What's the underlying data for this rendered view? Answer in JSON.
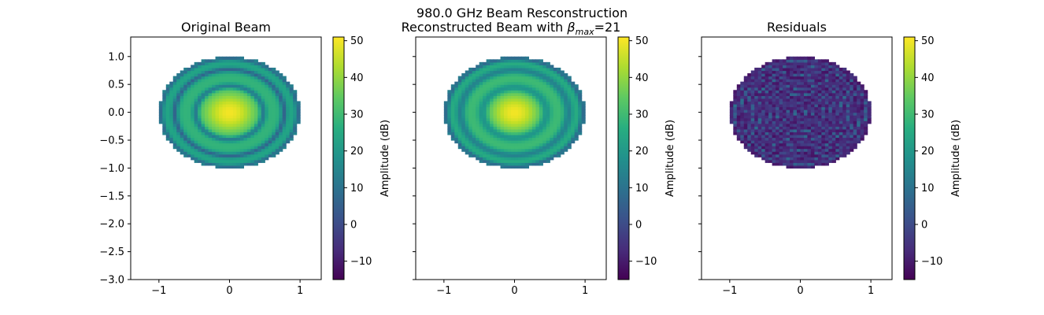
{
  "chart_data": {
    "type": "heatmap",
    "suptitle": "980.0 GHz Beam Resconstruction",
    "shared": {
      "xlim": [
        -1.4,
        1.3
      ],
      "ylim": [
        -3.0,
        1.35
      ],
      "xticks": [
        -1,
        0,
        1
      ],
      "xtick_labels": [
        "−1",
        "0",
        "1"
      ],
      "yticks": [
        1.0,
        0.5,
        0.0,
        -0.5,
        -1.0,
        -1.5,
        -2.0,
        -2.5,
        -3.0
      ],
      "ytick_labels": [
        "1.0",
        "0.5",
        "0.0",
        "−0.5",
        "−1.0",
        "−1.5",
        "−2.0",
        "−2.5",
        "−3.0"
      ],
      "colormap": "viridis",
      "beam_center": [
        0.0,
        0.0
      ],
      "beam_radius": 1.0,
      "grid": false
    },
    "panels": [
      {
        "id": "original",
        "title": "Original Beam",
        "title_prefix": "",
        "title_symbol": "",
        "title_subscript": "",
        "title_suffix": "",
        "show_yticklabels": true,
        "field": {
          "background_db": 20,
          "central_peak_db": 50,
          "central_width": 0.32,
          "rings": [
            {
              "radius": 0.49,
              "width": 0.035,
              "db": 5
            },
            {
              "radius": 0.62,
              "width": 0.09,
              "db": 28
            },
            {
              "radius": 0.78,
              "width": 0.03,
              "db": 3
            },
            {
              "radius": 0.89,
              "width": 0.06,
              "db": 24
            },
            {
              "radius": 0.97,
              "width": 0.025,
              "db": 8
            }
          ]
        },
        "colorbar": {
          "label": "Amplitude (dB)",
          "range": [
            -15,
            51
          ],
          "ticks": [
            50,
            40,
            30,
            20,
            10,
            0,
            -10
          ],
          "tick_labels": [
            "50",
            "40",
            "30",
            "20",
            "10",
            "0",
            "−10"
          ]
        }
      },
      {
        "id": "reconstructed",
        "title": "",
        "title_prefix": "Reconstructed Beam with ",
        "title_symbol": "β",
        "title_subscript": "max",
        "title_suffix": "=21",
        "show_yticklabels": false,
        "field": {
          "background_db": 20,
          "central_peak_db": 50,
          "central_width": 0.3,
          "rings": [
            {
              "radius": 0.47,
              "width": 0.05,
              "db": 15
            },
            {
              "radius": 0.62,
              "width": 0.1,
              "db": 30
            },
            {
              "radius": 0.78,
              "width": 0.045,
              "db": 10
            },
            {
              "radius": 0.89,
              "width": 0.07,
              "db": 26
            },
            {
              "radius": 0.97,
              "width": 0.03,
              "db": 8
            }
          ]
        },
        "colorbar": {
          "label": "Amplitude (dB)",
          "range": [
            -15,
            51
          ],
          "ticks": [
            50,
            40,
            30,
            20,
            10,
            0,
            -10
          ],
          "tick_labels": [
            "50",
            "40",
            "30",
            "20",
            "10",
            "0",
            "−10"
          ]
        }
      },
      {
        "id": "residuals",
        "title": "Residuals",
        "title_prefix": "",
        "title_symbol": "",
        "title_subscript": "",
        "title_suffix": "",
        "show_yticklabels": false,
        "field": {
          "residual": true,
          "base_db": -8,
          "ring_period": 0.085,
          "ring_db": 10
        },
        "colorbar": {
          "label": "Amplitude (dB)",
          "range": [
            -15,
            51
          ],
          "ticks": [
            50,
            40,
            30,
            20,
            10,
            0,
            -10
          ],
          "tick_labels": [
            "50",
            "40",
            "30",
            "20",
            "10",
            "0",
            "−10"
          ]
        }
      }
    ]
  }
}
